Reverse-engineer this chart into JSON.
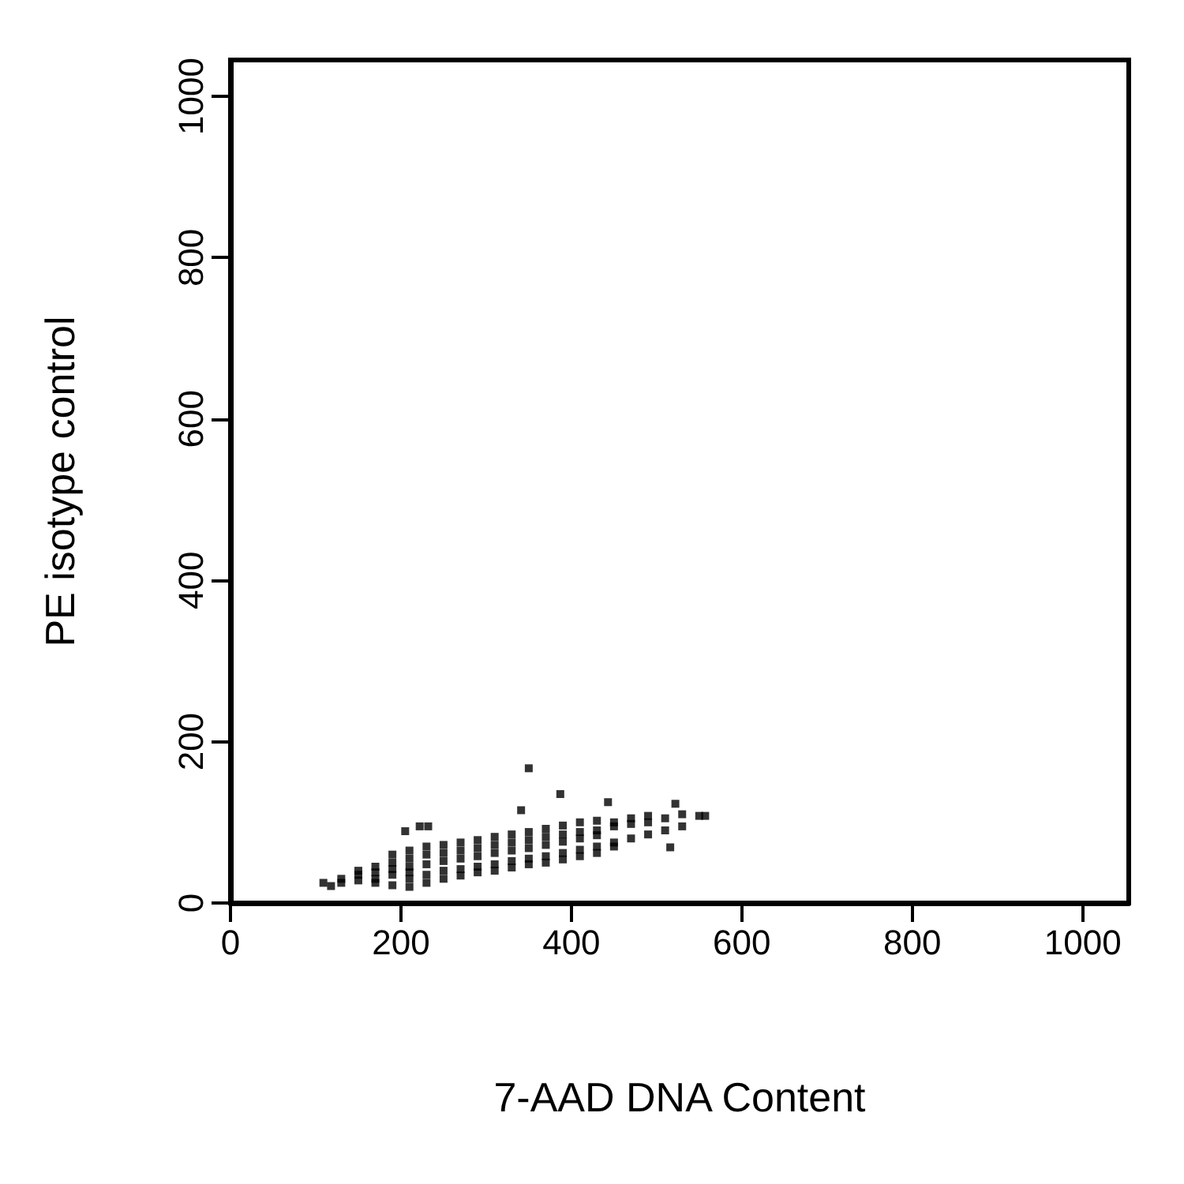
{
  "chart_data": {
    "type": "scatter",
    "xlabel": "7-AAD DNA Content",
    "ylabel": "PE isotype control",
    "xlim": [
      0,
      1054
    ],
    "ylim": [
      0,
      1045
    ],
    "xticks": [
      0,
      200,
      400,
      600,
      800,
      1000
    ],
    "yticks": [
      0,
      200,
      400,
      600,
      800,
      1000
    ],
    "grid": false,
    "marker": "square",
    "series": [
      {
        "color": "#000000",
        "x": [
          109,
          118,
          130,
          130,
          150,
          150,
          150,
          170,
          170,
          170,
          170,
          190,
          190,
          190,
          190,
          190,
          205,
          210,
          210,
          210,
          210,
          210,
          210,
          222,
          230,
          230,
          230,
          230,
          230,
          232,
          250,
          250,
          250,
          250,
          250,
          270,
          270,
          270,
          270,
          270,
          290,
          290,
          290,
          290,
          290,
          310,
          310,
          310,
          310,
          310,
          330,
          330,
          330,
          330,
          330,
          341,
          350,
          350,
          350,
          350,
          350,
          350,
          370,
          370,
          370,
          370,
          370,
          387,
          390,
          390,
          390,
          390,
          390,
          410,
          410,
          410,
          410,
          410,
          430,
          430,
          430,
          430,
          430,
          443,
          450,
          450,
          450,
          450,
          470,
          470,
          470,
          490,
          490,
          490,
          510,
          510,
          516,
          522,
          530,
          530,
          550,
          557
        ],
        "values": [
          25,
          21,
          30,
          25,
          35,
          28,
          40,
          45,
          30,
          38,
          25,
          50,
          35,
          60,
          22,
          42,
          89,
          55,
          30,
          65,
          20,
          45,
          38,
          95,
          60,
          35,
          70,
          25,
          48,
          95,
          62,
          40,
          72,
          30,
          52,
          65,
          42,
          75,
          34,
          55,
          68,
          45,
          78,
          38,
          58,
          72,
          48,
          82,
          40,
          62,
          75,
          52,
          85,
          44,
          65,
          115,
          78,
          55,
          88,
          48,
          68,
          167,
          82,
          58,
          92,
          50,
          72,
          135,
          85,
          62,
          96,
          54,
          76,
          88,
          66,
          100,
          58,
          80,
          90,
          70,
          102,
          62,
          84,
          125,
          95,
          75,
          100,
          70,
          98,
          80,
          105,
          100,
          85,
          108,
          105,
          90,
          69,
          123,
          110,
          95,
          108,
          108
        ]
      }
    ]
  }
}
